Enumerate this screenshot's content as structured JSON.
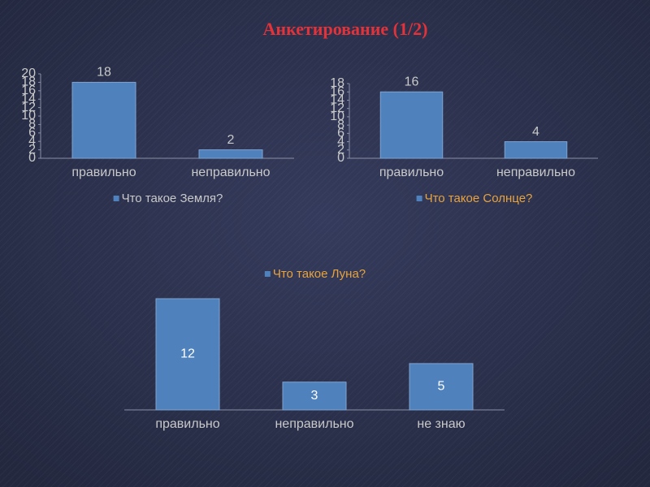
{
  "title": "Анкетирование (1/2)",
  "chart_data": [
    {
      "type": "bar",
      "categories": [
        "правильно",
        "неправильно"
      ],
      "series": [
        {
          "name": "Что такое Земля?",
          "color": "#4f81bd",
          "values": [
            18,
            2
          ]
        }
      ],
      "ylim": [
        0,
        20
      ],
      "yticks": [
        0,
        2,
        4,
        6,
        8,
        10,
        12,
        14,
        16,
        18,
        20
      ],
      "legend": "bottom",
      "legend_text_color": "#c9c9c9",
      "value_labels_position": "outside"
    },
    {
      "type": "bar",
      "categories": [
        "правильно",
        "неправильно"
      ],
      "series": [
        {
          "name": "Что такое Солнце?",
          "color": "#4f81bd",
          "values": [
            16,
            4
          ]
        }
      ],
      "ylim": [
        0,
        18
      ],
      "yticks": [
        0,
        2,
        4,
        6,
        8,
        10,
        12,
        14,
        16,
        18
      ],
      "legend": "bottom",
      "legend_text_color": "#e8a33c",
      "value_labels_position": "outside"
    },
    {
      "type": "bar",
      "categories": [
        "правильно",
        "неправильно",
        "не знаю"
      ],
      "series": [
        {
          "name": "Что такое Луна?",
          "color": "#4f81bd",
          "values": [
            12,
            3,
            5
          ]
        }
      ],
      "legend": "top",
      "legend_text_color": "#e8a33c",
      "value_labels_position": "inside"
    }
  ]
}
